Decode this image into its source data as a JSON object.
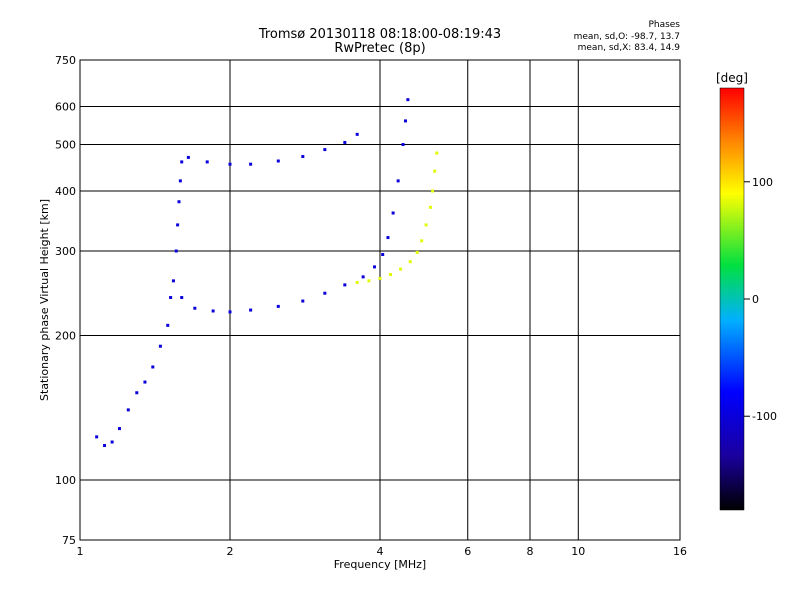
{
  "header": {
    "title": "Tromsø 20130118 08:18:00-08:19:43",
    "subtitle": "RwPretec (8p)"
  },
  "stats": {
    "heading": "Phases",
    "o_mode": "mean, sd,O: -98.7, 13.7",
    "x_mode": "mean, sd,X:  83.4, 14.9"
  },
  "colorbar": {
    "label": "[deg]",
    "range": [
      -180,
      180
    ],
    "ticks": [
      "100",
      "0",
      "-100"
    ],
    "tick_values": [
      100,
      0,
      -100
    ]
  },
  "chart_data": {
    "type": "scatter",
    "xlabel": "Frequency [MHz]",
    "ylabel": "Stationary phase Virtual Height [km]",
    "xscale": "log",
    "yscale": "log",
    "xlim": [
      1,
      16
    ],
    "ylim": [
      75,
      750
    ],
    "x_ticks": [
      1,
      2,
      4,
      6,
      8,
      10,
      16
    ],
    "x_tick_labels": [
      "1",
      "2",
      "4",
      "6",
      "8",
      "10",
      "16"
    ],
    "y_ticks": [
      75,
      100,
      200,
      300,
      400,
      500,
      600,
      750
    ],
    "y_tick_labels": [
      "75",
      "100",
      "200",
      "300",
      "400",
      "500",
      "600",
      "750"
    ],
    "grid": true,
    "color_encodes": "phase [deg]",
    "traces": [
      {
        "description": "O-mode ground trace, lower layer",
        "phase": -100,
        "points": [
          [
            1.08,
            123
          ],
          [
            1.12,
            118
          ],
          [
            1.16,
            120
          ],
          [
            1.2,
            128
          ],
          [
            1.25,
            140
          ],
          [
            1.3,
            152
          ],
          [
            1.35,
            160
          ],
          [
            1.4,
            172
          ],
          [
            1.45,
            190
          ],
          [
            1.5,
            210
          ],
          [
            1.52,
            240
          ],
          [
            1.54,
            260
          ],
          [
            1.56,
            300
          ],
          [
            1.57,
            340
          ],
          [
            1.58,
            380
          ],
          [
            1.59,
            420
          ],
          [
            1.6,
            460
          ]
        ]
      },
      {
        "description": "O-mode trace, upper F-layer",
        "phase": -100,
        "points": [
          [
            1.65,
            470
          ],
          [
            1.8,
            460
          ],
          [
            2.0,
            455
          ],
          [
            2.2,
            455
          ],
          [
            2.5,
            462
          ],
          [
            2.8,
            472
          ],
          [
            3.1,
            488
          ],
          [
            3.4,
            505
          ],
          [
            3.6,
            525
          ]
        ]
      },
      {
        "description": "O-mode trace, F-layer",
        "phase": -100,
        "points": [
          [
            1.6,
            240
          ],
          [
            1.7,
            228
          ],
          [
            1.85,
            225
          ],
          [
            2.0,
            224
          ],
          [
            2.2,
            226
          ],
          [
            2.5,
            230
          ],
          [
            2.8,
            236
          ],
          [
            3.1,
            245
          ],
          [
            3.4,
            255
          ],
          [
            3.7,
            265
          ],
          [
            3.9,
            278
          ],
          [
            4.05,
            295
          ],
          [
            4.15,
            320
          ],
          [
            4.25,
            360
          ],
          [
            4.35,
            420
          ],
          [
            4.45,
            500
          ],
          [
            4.5,
            560
          ],
          [
            4.55,
            620
          ]
        ]
      },
      {
        "description": "X-mode trace",
        "phase": 83,
        "points": [
          [
            3.6,
            258
          ],
          [
            3.8,
            260
          ],
          [
            4.0,
            263
          ],
          [
            4.2,
            268
          ],
          [
            4.4,
            275
          ],
          [
            4.6,
            285
          ],
          [
            4.75,
            298
          ],
          [
            4.85,
            315
          ],
          [
            4.95,
            340
          ],
          [
            5.05,
            370
          ],
          [
            5.1,
            400
          ],
          [
            5.15,
            440
          ],
          [
            5.2,
            480
          ]
        ]
      }
    ]
  }
}
